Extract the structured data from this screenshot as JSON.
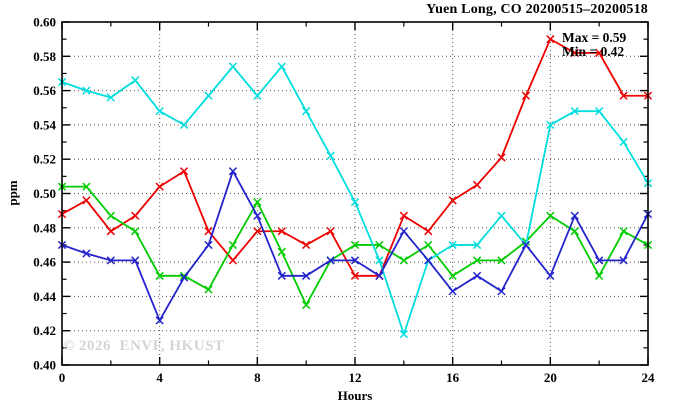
{
  "watermark": "© 2026  ENVF, HKUST",
  "chart_data": {
    "type": "line",
    "title": "Yuen Long, CO 20200515–20200518",
    "xlabel": "Hours",
    "ylabel": "ppm",
    "xlim": [
      0,
      24
    ],
    "ylim": [
      0.4,
      0.6
    ],
    "grid": "dotted",
    "legend": "none",
    "annotations": [
      {
        "text": "Max = 0.59"
      },
      {
        "text": "Min = 0.42"
      }
    ],
    "x_ticks": [
      {
        "v": 0,
        "label": "0"
      },
      {
        "v": 4,
        "label": "4"
      },
      {
        "v": 8,
        "label": "8"
      },
      {
        "v": 12,
        "label": "12"
      },
      {
        "v": 16,
        "label": "16"
      },
      {
        "v": 20,
        "label": "20"
      },
      {
        "v": 24,
        "label": "24"
      }
    ],
    "y_ticks": [
      {
        "v": 0.4,
        "label": "0.40"
      },
      {
        "v": 0.42,
        "label": "0.42"
      },
      {
        "v": 0.44,
        "label": "0.44"
      },
      {
        "v": 0.46,
        "label": "0.46"
      },
      {
        "v": 0.48,
        "label": "0.48"
      },
      {
        "v": 0.5,
        "label": "0.50"
      },
      {
        "v": 0.52,
        "label": "0.52"
      },
      {
        "v": 0.54,
        "label": "0.54"
      },
      {
        "v": 0.56,
        "label": "0.56"
      },
      {
        "v": 0.58,
        "label": "0.58"
      },
      {
        "v": 0.6,
        "label": "0.60"
      }
    ],
    "x_minor_ticks": [
      2,
      6,
      10,
      14,
      18,
      22
    ],
    "y_minor_ticks": [
      0.41,
      0.43,
      0.45,
      0.47,
      0.49,
      0.51,
      0.53,
      0.55,
      0.57,
      0.59
    ],
    "x_grid": [
      4,
      8,
      12,
      16,
      20
    ],
    "y_grid": [
      0.42,
      0.44,
      0.46,
      0.48,
      0.5,
      0.52,
      0.54,
      0.56,
      0.58
    ],
    "x": [
      0,
      1,
      2,
      3,
      4,
      5,
      6,
      7,
      8,
      9,
      10,
      11,
      12,
      13,
      14,
      15,
      16,
      17,
      18,
      19,
      20,
      21,
      22,
      23,
      24
    ],
    "series": [
      {
        "name": "red",
        "color": "#ee0000",
        "values": [
          0.488,
          0.496,
          0.478,
          0.487,
          0.504,
          0.513,
          0.478,
          0.461,
          0.478,
          0.478,
          0.47,
          0.478,
          0.452,
          0.452,
          0.487,
          0.478,
          0.496,
          0.505,
          0.521,
          0.557,
          0.59,
          0.582,
          0.582,
          0.557,
          0.557
        ]
      },
      {
        "name": "green",
        "color": "#00cc00",
        "values": [
          0.504,
          0.504,
          0.487,
          0.478,
          0.452,
          0.452,
          0.444,
          0.47,
          0.495,
          0.466,
          0.435,
          0.461,
          0.47,
          0.47,
          0.461,
          0.47,
          0.452,
          0.461,
          0.461,
          0.472,
          0.487,
          0.478,
          0.452,
          0.478,
          0.47
        ]
      },
      {
        "name": "cyan",
        "color": "#00dede",
        "values": [
          0.565,
          0.56,
          0.556,
          0.566,
          0.548,
          0.54,
          0.557,
          0.574,
          0.557,
          0.574,
          0.548,
          0.522,
          0.495,
          0.461,
          0.418,
          0.461,
          0.47,
          0.47,
          0.487,
          0.47,
          0.54,
          0.548,
          0.548,
          0.53,
          0.506
        ]
      },
      {
        "name": "blue",
        "color": "#2424cc",
        "values": [
          0.47,
          0.465,
          0.461,
          0.461,
          0.426,
          0.451,
          0.47,
          0.513,
          0.487,
          0.452,
          0.452,
          0.461,
          0.461,
          0.452,
          0.478,
          0.461,
          0.443,
          0.452,
          0.443,
          0.47,
          0.452,
          0.487,
          0.461,
          0.461,
          0.488
        ]
      }
    ]
  }
}
